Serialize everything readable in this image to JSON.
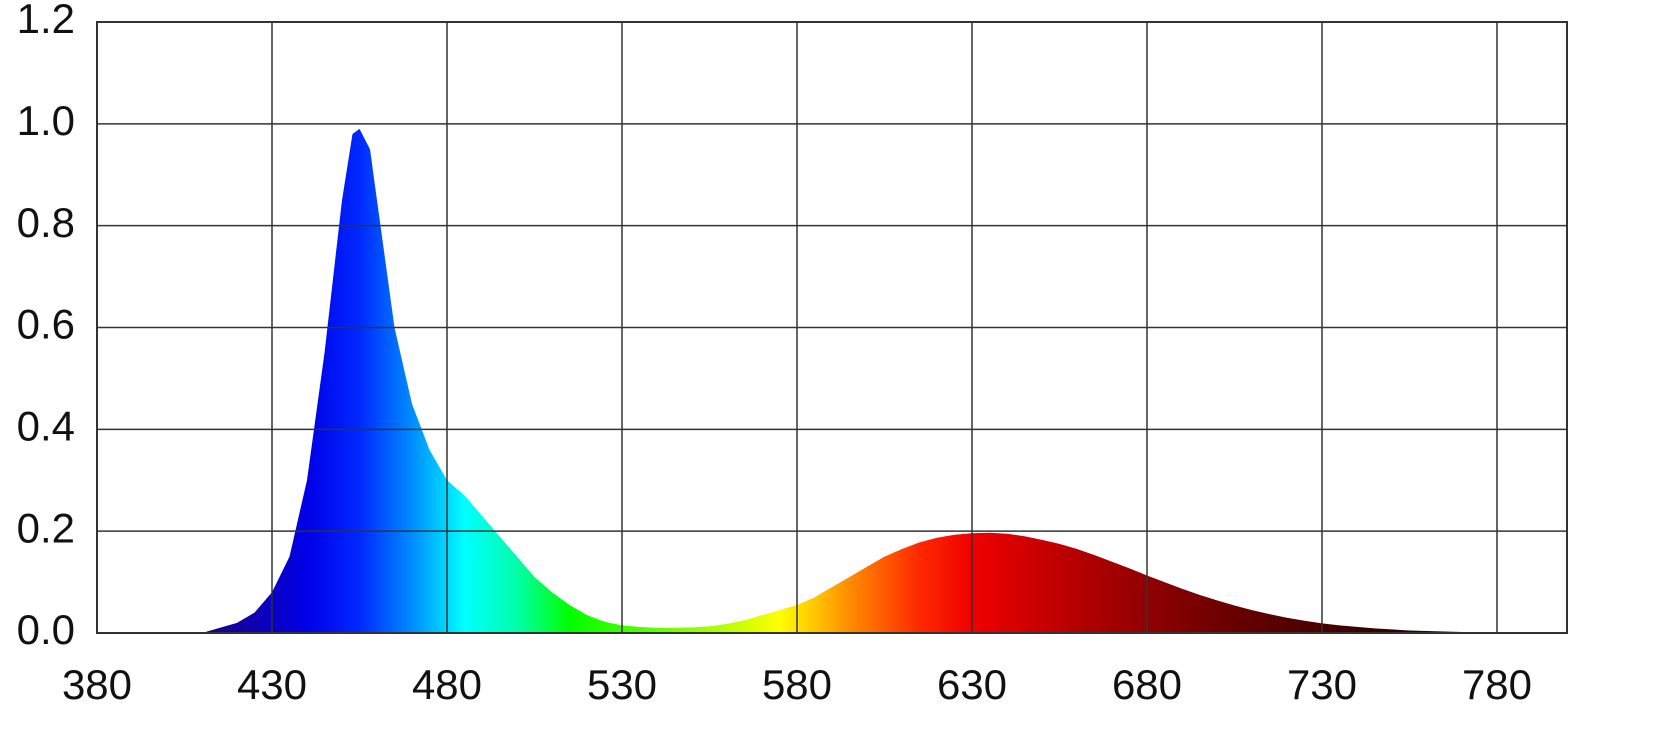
{
  "chart_data": {
    "type": "area",
    "x": [
      410,
      415,
      420,
      425,
      430,
      435,
      440,
      445,
      450,
      453,
      455,
      458,
      460,
      465,
      470,
      475,
      480,
      485,
      490,
      495,
      500,
      505,
      510,
      515,
      520,
      525,
      530,
      535,
      540,
      545,
      550,
      555,
      560,
      565,
      570,
      575,
      580,
      585,
      590,
      595,
      600,
      605,
      610,
      615,
      620,
      625,
      630,
      635,
      640,
      645,
      650,
      655,
      660,
      665,
      670,
      675,
      680,
      685,
      690,
      695,
      700,
      705,
      710,
      715,
      720,
      725,
      730,
      735,
      740,
      745,
      750,
      755,
      760,
      765,
      770,
      775,
      780,
      785,
      790,
      795
    ],
    "values": [
      0,
      0.01,
      0.02,
      0.04,
      0.08,
      0.15,
      0.3,
      0.55,
      0.85,
      0.98,
      0.99,
      0.95,
      0.85,
      0.6,
      0.45,
      0.36,
      0.3,
      0.27,
      0.23,
      0.19,
      0.15,
      0.11,
      0.08,
      0.055,
      0.035,
      0.022,
      0.015,
      0.012,
      0.01,
      0.01,
      0.011,
      0.013,
      0.018,
      0.025,
      0.035,
      0.045,
      0.055,
      0.07,
      0.09,
      0.11,
      0.13,
      0.15,
      0.165,
      0.178,
      0.187,
      0.193,
      0.196,
      0.197,
      0.195,
      0.19,
      0.183,
      0.175,
      0.165,
      0.153,
      0.14,
      0.127,
      0.113,
      0.1,
      0.087,
      0.075,
      0.064,
      0.054,
      0.045,
      0.037,
      0.03,
      0.024,
      0.019,
      0.015,
      0.012,
      0.009,
      0.007,
      0.005,
      0.004,
      0.003,
      0.002,
      0.002,
      0.001,
      0.001,
      0.001,
      0
    ],
    "xlim": [
      380,
      800
    ],
    "ylim": [
      0,
      1.2
    ],
    "xticks": [
      380,
      430,
      480,
      530,
      580,
      630,
      680,
      730,
      780
    ],
    "yticks": [
      {
        "value": 0,
        "label": "0.0"
      },
      0.2,
      0.4,
      0.6,
      0.8,
      {
        "value": 1,
        "label": "1.0"
      },
      1.2
    ],
    "grid": true
  }
}
